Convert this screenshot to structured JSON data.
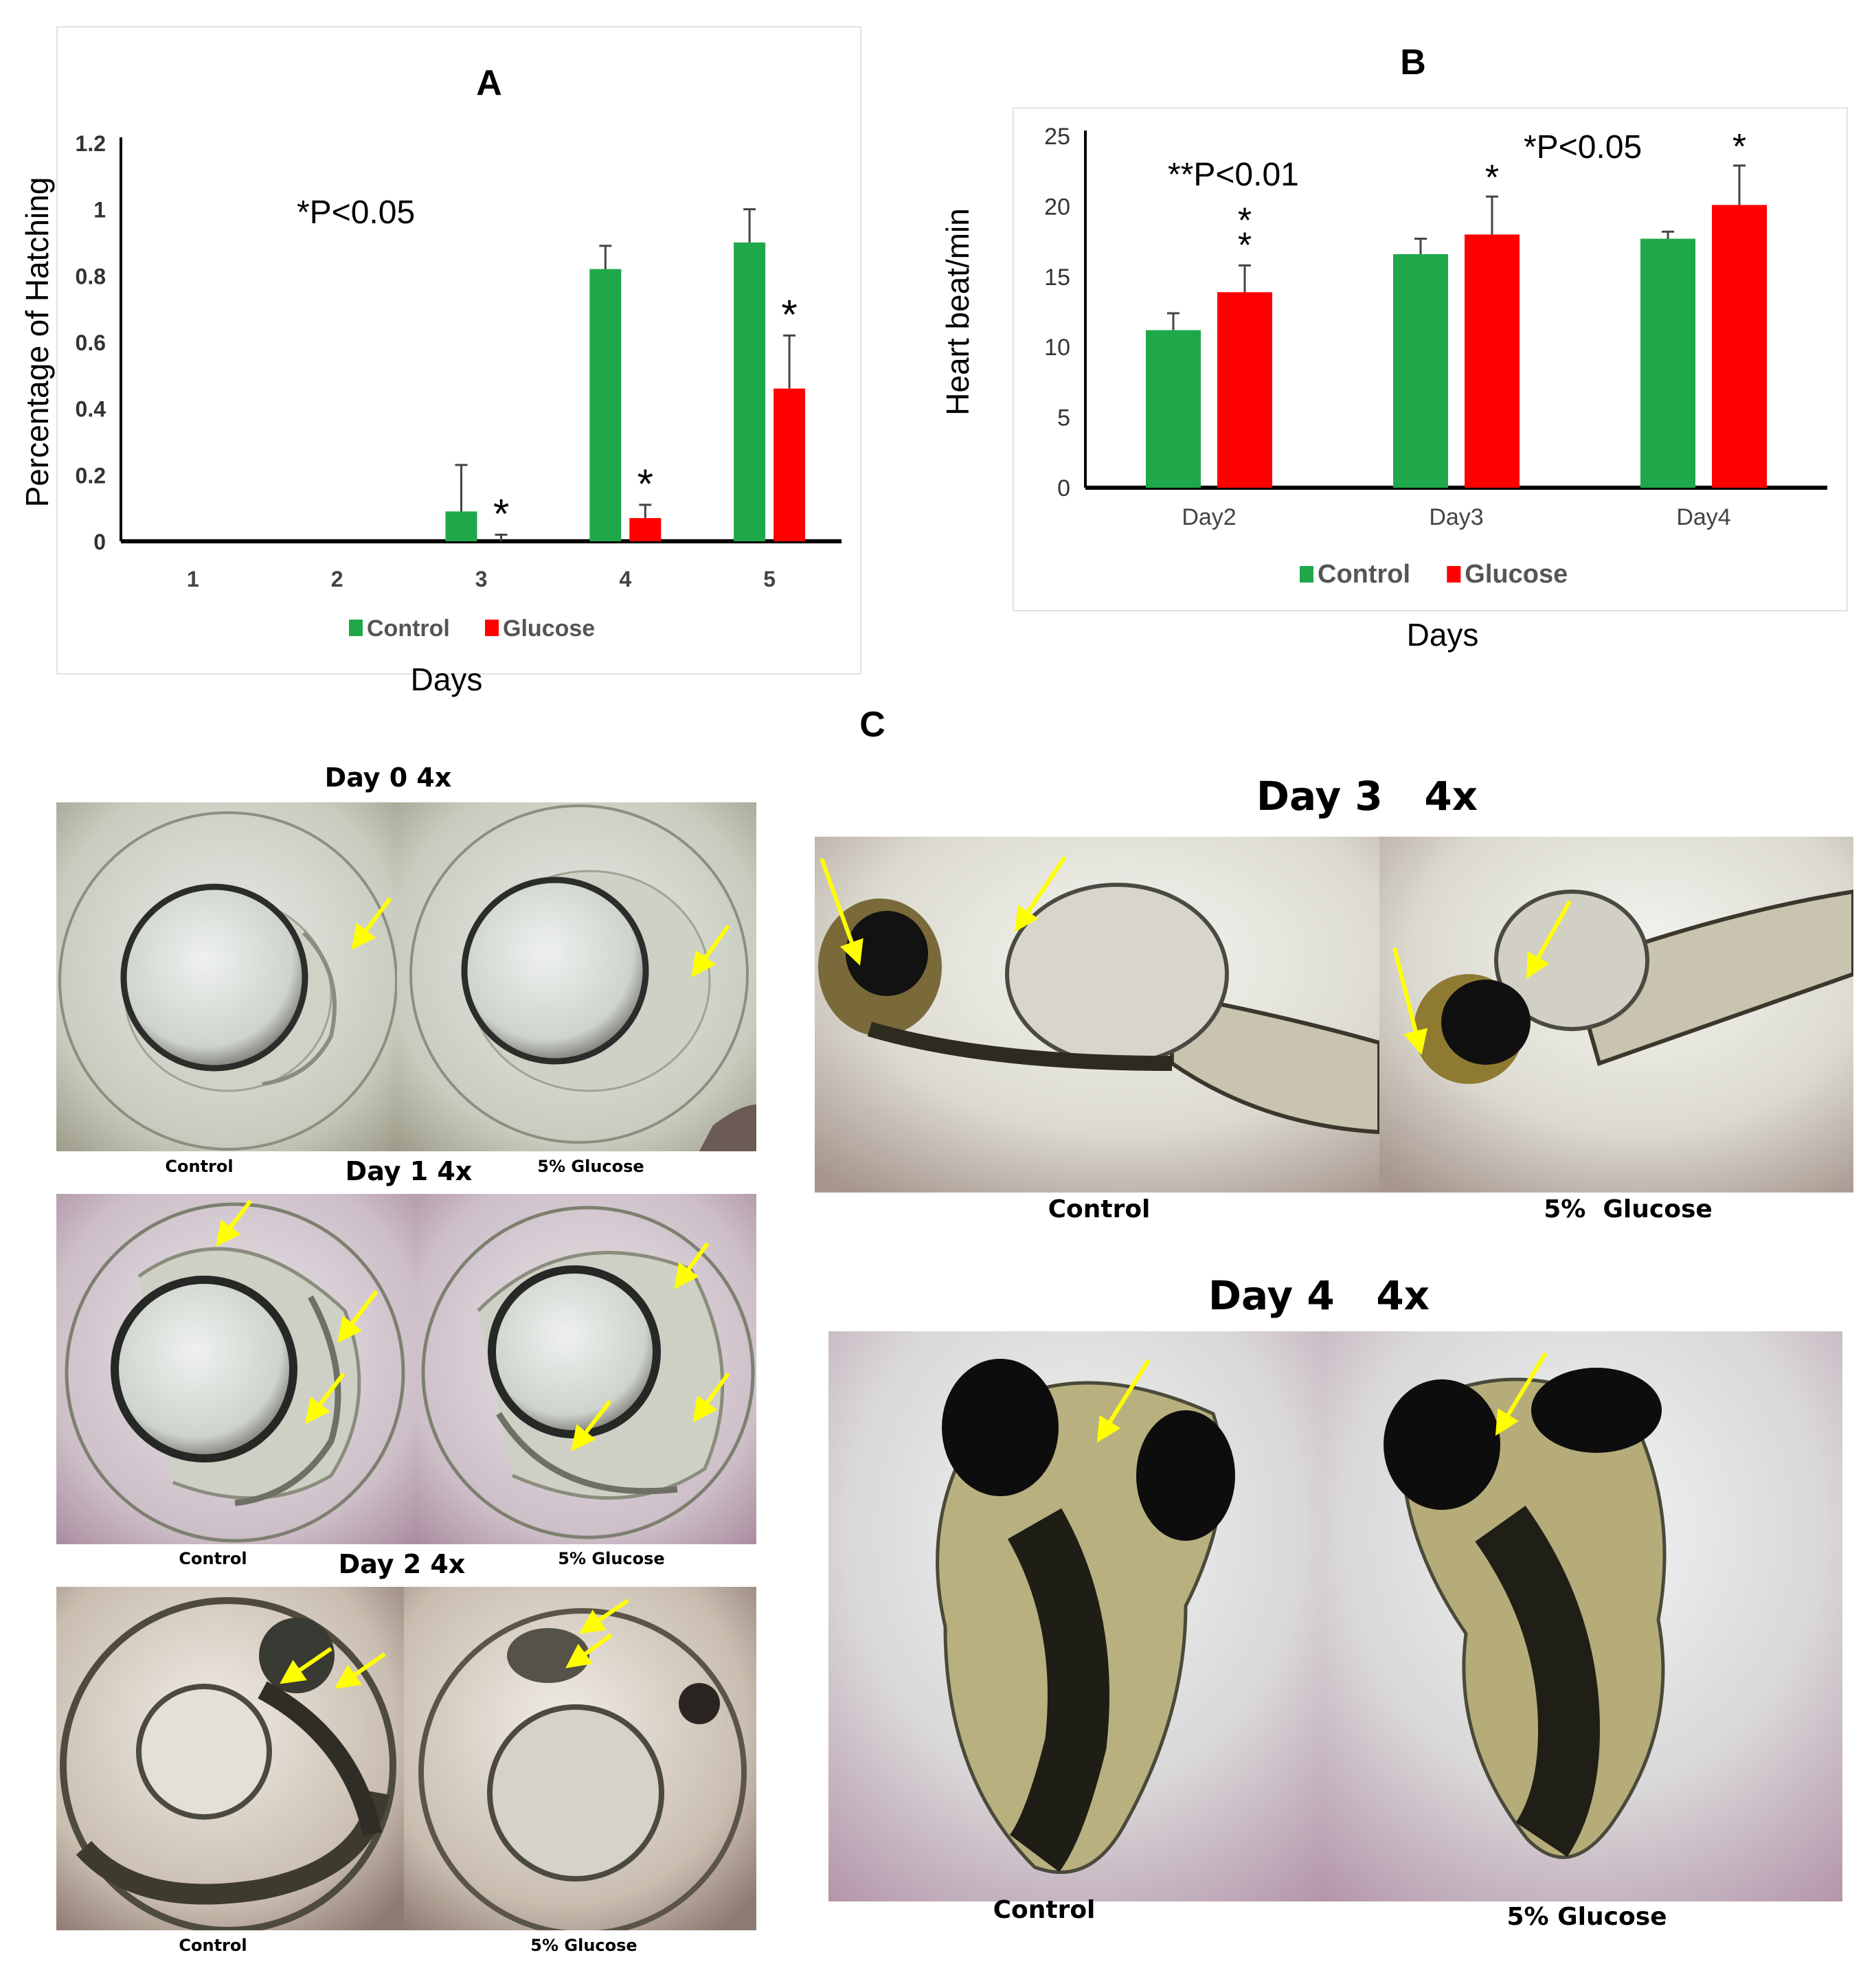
{
  "chart_data": [
    {
      "type": "bar",
      "panel": "A",
      "title": "A",
      "xlabel": "Days",
      "ylabel": "Percentage of Hatching",
      "categories": [
        "1",
        "2",
        "3",
        "4",
        "5"
      ],
      "ylim": [
        0,
        1.2
      ],
      "yticks": [
        "0",
        "0.2",
        "0.4",
        "0.6",
        "0.8",
        "1",
        "1.2"
      ],
      "series": [
        {
          "name": "Control",
          "color": "#1ea84a",
          "values": [
            0,
            0,
            0.09,
            0.82,
            0.9
          ],
          "errors": [
            0,
            0,
            0.14,
            0.07,
            0.1
          ]
        },
        {
          "name": "Glucose",
          "color": "#ff0000",
          "values": [
            0,
            0,
            0.0,
            0.07,
            0.46
          ],
          "errors": [
            0,
            0,
            0.02,
            0.04,
            0.16
          ]
        }
      ],
      "significance": [
        "",
        "",
        "*",
        "*",
        "*"
      ],
      "annotation": "*P<0.05",
      "legend": "bottom",
      "grid": false
    },
    {
      "type": "bar",
      "panel": "B",
      "title": "B",
      "xlabel": "Days",
      "ylabel": "Heart beat/min",
      "categories": [
        "Day2",
        "Day3",
        "Day4"
      ],
      "ylim": [
        0,
        25
      ],
      "yticks": [
        "0",
        "5",
        "10",
        "15",
        "20",
        "25"
      ],
      "series": [
        {
          "name": "Control",
          "color": "#1ea84a",
          "values": [
            11.2,
            16.6,
            17.7
          ],
          "errors": [
            1.2,
            1.1,
            0.5
          ]
        },
        {
          "name": "Glucose",
          "color": "#ff0000",
          "values": [
            13.9,
            18.0,
            20.1
          ],
          "errors": [
            1.9,
            2.7,
            2.8
          ]
        }
      ],
      "significance": [
        "**",
        "*",
        "*"
      ],
      "annotations": [
        "**P<0.01",
        "*P<0.05"
      ],
      "legend": "bottom",
      "grid": false
    }
  ],
  "panel_c": {
    "label": "C",
    "left": [
      {
        "title": "Day 0 4x",
        "captions": [
          "Control",
          "5% Glucose"
        ]
      },
      {
        "title": "Day 1 4x",
        "captions": [
          "Control",
          "5% Glucose"
        ]
      },
      {
        "title": "Day 2 4x",
        "captions": [
          "Control",
          "5% Glucose"
        ]
      }
    ],
    "right": [
      {
        "title": "Day 3   4x",
        "captions": [
          "Control",
          "5%  Glucose"
        ]
      },
      {
        "title": "Day 4   4x",
        "captions": [
          "Control",
          "5% Glucose"
        ]
      }
    ]
  },
  "colors": {
    "control": "#1ea84a",
    "glucose": "#ff0000",
    "arrow": "#ffff00"
  }
}
